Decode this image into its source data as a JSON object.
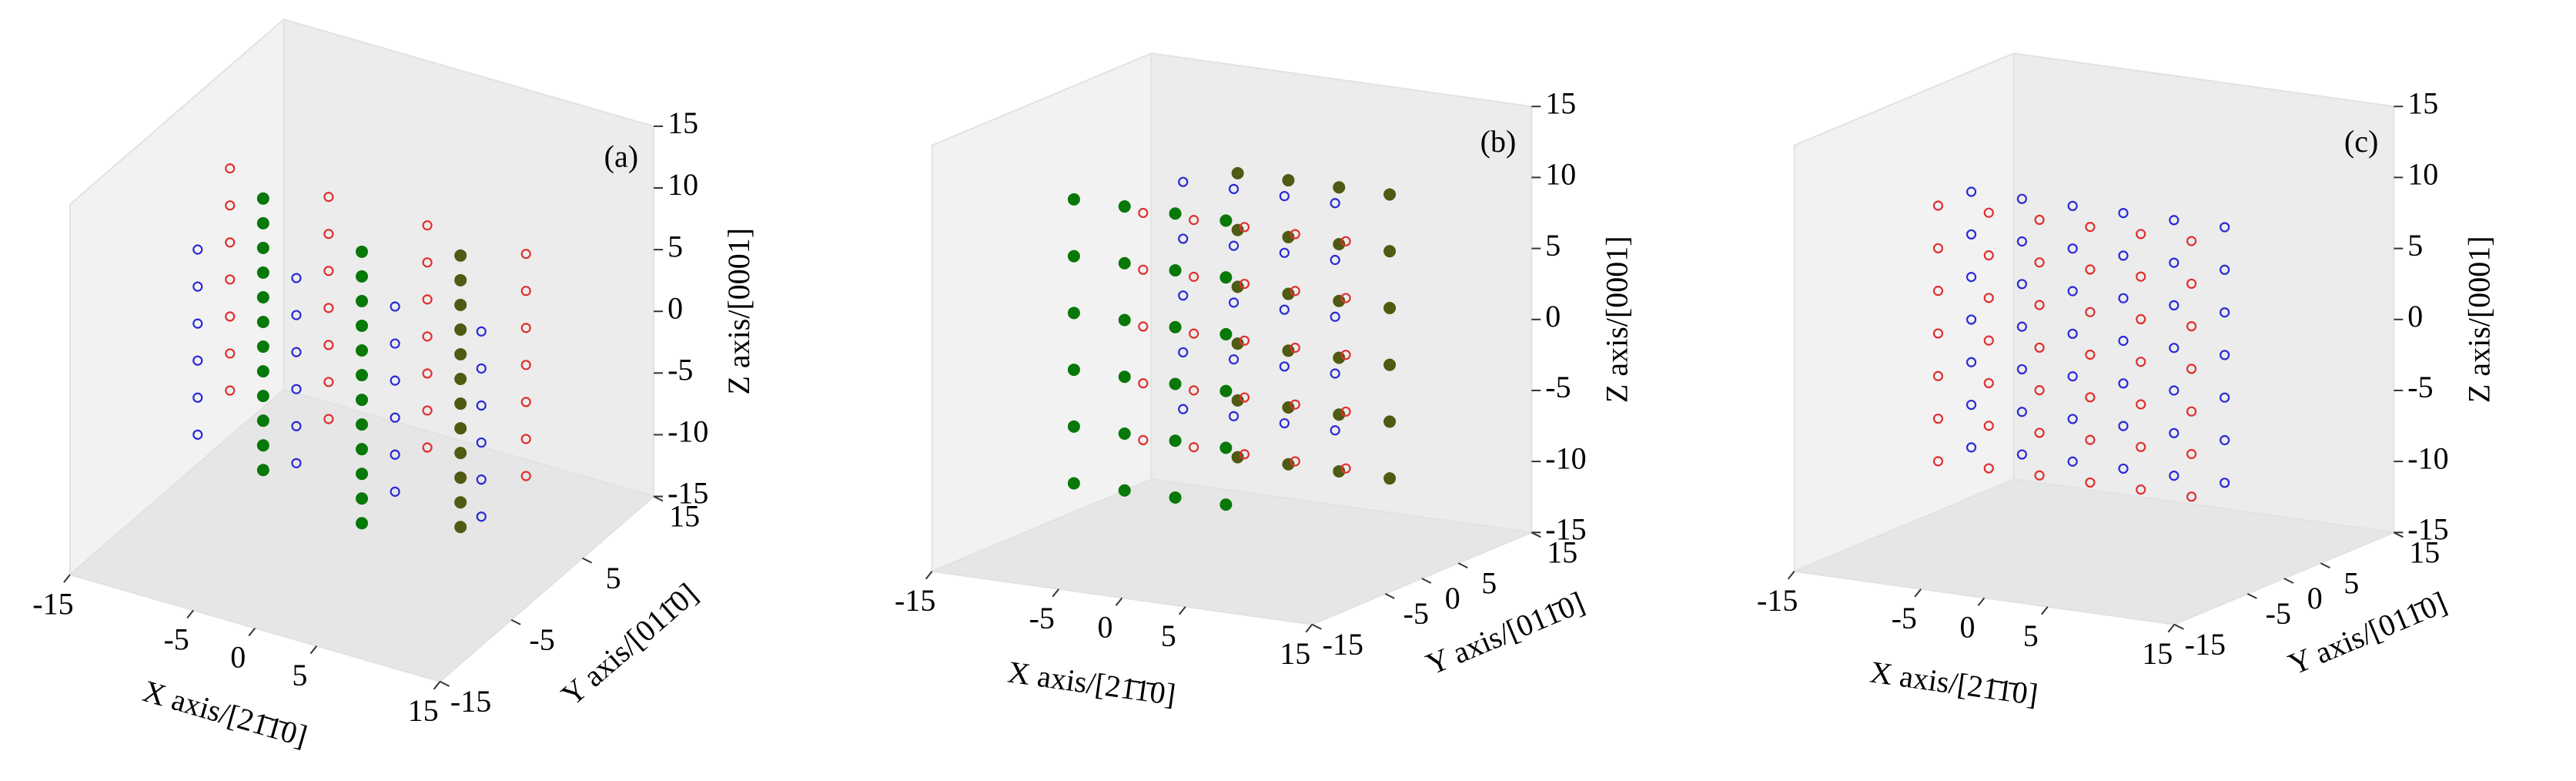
{
  "chart_data": [
    {
      "type": "scatter3d",
      "panel_label": "(a)",
      "xlabel": "X axis/[21̄1̄0]",
      "ylabel": "Y axis/[011̄0]",
      "zlabel": "Z axis/[0001]",
      "xlim": [
        -15,
        15
      ],
      "ylim": [
        -15,
        15
      ],
      "zlim": [
        -15,
        15
      ],
      "xticks": [
        -15,
        -5,
        0,
        5,
        15
      ],
      "yticks": [
        -15,
        -5,
        5,
        15
      ],
      "zticks": [
        -15,
        -10,
        -5,
        0,
        5,
        10,
        15
      ],
      "series": [
        {
          "color": "#087808",
          "marker": "filled",
          "x": [
            -8,
            -8,
            -8,
            -8,
            -8,
            -8,
            -8,
            -8,
            -8,
            -8,
            -8,
            -8,
            0,
            0,
            0,
            0,
            0,
            0,
            0,
            0,
            0,
            0,
            0,
            0
          ],
          "y": [
            0,
            0,
            0,
            0,
            0,
            0,
            0,
            0,
            0,
            0,
            0,
            0,
            0,
            0,
            0,
            0,
            0,
            0,
            0,
            0,
            0,
            0,
            0,
            0
          ],
          "z": [
            -12,
            -10,
            -8,
            -6,
            -4,
            -2,
            0,
            2,
            4,
            6,
            8,
            10,
            -14,
            -12,
            -10,
            -8,
            -6,
            -4,
            -2,
            0,
            2,
            4,
            6,
            8
          ]
        },
        {
          "color": "#4f5a12",
          "marker": "filled",
          "x": [
            8,
            8,
            8,
            8,
            8,
            8,
            8,
            8,
            8,
            8,
            8,
            8
          ],
          "y": [
            0,
            0,
            0,
            0,
            0,
            0,
            0,
            0,
            0,
            0,
            0,
            0
          ],
          "z": [
            -12,
            -10,
            -8,
            -6,
            -4,
            -2,
            0,
            2,
            4,
            6,
            8,
            10
          ]
        },
        {
          "color": "#2a2ad6",
          "marker": "open",
          "x": [
            -11,
            -11,
            -11,
            -11,
            -11,
            -11,
            -3,
            -3,
            -3,
            -3,
            -3,
            -3,
            5,
            5,
            5,
            5,
            5,
            5,
            12,
            12,
            12,
            12,
            12,
            12
          ],
          "y": [
            -4,
            -4,
            -4,
            -4,
            -4,
            -4,
            -4,
            -4,
            -4,
            -4,
            -4,
            -4,
            -4,
            -4,
            -4,
            -4,
            -4,
            -4,
            -4,
            -4,
            -4,
            -4,
            -4,
            -4
          ],
          "z": [
            -8,
            -5,
            -2,
            1,
            4,
            7,
            -8,
            -5,
            -2,
            1,
            4,
            7,
            -8,
            -5,
            -2,
            1,
            4,
            7,
            -8,
            -5,
            -2,
            1,
            4,
            7
          ]
        },
        {
          "color": "#e03030",
          "marker": "open",
          "x": [
            -13,
            -13,
            -13,
            -13,
            -13,
            -13,
            -13,
            -5,
            -5,
            -5,
            -5,
            -5,
            -5,
            -5,
            3,
            3,
            3,
            3,
            3,
            3,
            3,
            11,
            11,
            11,
            11,
            11,
            11,
            11
          ],
          "y": [
            4,
            4,
            4,
            4,
            4,
            4,
            4,
            4,
            4,
            4,
            4,
            4,
            4,
            4,
            4,
            4,
            4,
            4,
            4,
            4,
            4,
            4,
            4,
            4,
            4,
            4,
            4,
            4
          ],
          "z": [
            -9,
            -6,
            -3,
            0,
            3,
            6,
            9,
            -9,
            -6,
            -3,
            0,
            3,
            6,
            9,
            -9,
            -6,
            -3,
            0,
            3,
            6,
            9,
            -9,
            -6,
            -3,
            0,
            3,
            6,
            9
          ]
        }
      ]
    },
    {
      "type": "scatter3d",
      "panel_label": "(b)",
      "xlabel": "X axis/[21̄1̄0]",
      "ylabel": "Y axis/[011̄0]",
      "zlabel": "Z axis/[0001]",
      "xlim": [
        -15,
        15
      ],
      "ylim": [
        -15,
        15
      ],
      "zlim": [
        -15,
        15
      ],
      "xticks": [
        -15,
        -5,
        0,
        5,
        15
      ],
      "yticks": [
        -15,
        -5,
        0,
        5,
        15
      ],
      "zticks": [
        -15,
        -10,
        -5,
        0,
        5,
        10,
        15
      ],
      "series": [
        {
          "color": "#087808",
          "marker": "filled",
          "x": [
            -9,
            -9,
            -9,
            -9,
            -9,
            -9,
            -5,
            -5,
            -5,
            -5,
            -5,
            -5,
            -1,
            -1,
            -1,
            -1,
            -1,
            -1,
            3,
            3,
            3,
            3,
            3,
            3
          ],
          "y": [
            -6,
            -6,
            -6,
            -6,
            -6,
            -6,
            -6,
            -6,
            -6,
            -6,
            -6,
            -6,
            -6,
            -6,
            -6,
            -6,
            -6,
            -6,
            -6,
            -6,
            -6,
            -6,
            -6,
            -6
          ],
          "z": [
            -10,
            -6,
            -2,
            2,
            6,
            10,
            -10,
            -6,
            -2,
            2,
            6,
            10,
            -10,
            -6,
            -2,
            2,
            6,
            10,
            -10,
            -6,
            -2,
            2,
            6,
            10
          ]
        },
        {
          "color": "#4f5a12",
          "marker": "filled",
          "x": [
            -3,
            -3,
            -3,
            -3,
            -3,
            -3,
            1,
            1,
            1,
            1,
            1,
            1,
            5,
            5,
            5,
            5,
            5,
            5,
            9,
            9,
            9,
            9,
            9,
            9
          ],
          "y": [
            6,
            6,
            6,
            6,
            6,
            6,
            6,
            6,
            6,
            6,
            6,
            6,
            6,
            6,
            6,
            6,
            6,
            6,
            6,
            6,
            6,
            6,
            6,
            6
          ],
          "z": [
            -10,
            -6,
            -2,
            2,
            6,
            10,
            -10,
            -6,
            -2,
            2,
            6,
            10,
            -10,
            -6,
            -2,
            2,
            6,
            10,
            -10,
            -6,
            -2,
            2,
            6,
            10
          ]
        },
        {
          "color": "#e03030",
          "marker": "open",
          "x": [
            -7,
            -7,
            -7,
            -7,
            -7,
            -3,
            -3,
            -3,
            -3,
            -3,
            1,
            1,
            1,
            1,
            1,
            5,
            5,
            5,
            5,
            5,
            9,
            9,
            9,
            9,
            9
          ],
          "y": [
            0,
            0,
            0,
            0,
            0,
            0,
            0,
            0,
            0,
            0,
            0,
            0,
            0,
            0,
            0,
            0,
            0,
            0,
            0,
            0,
            0,
            0,
            0,
            0,
            0
          ],
          "z": [
            -8,
            -4,
            0,
            4,
            8,
            -8,
            -4,
            0,
            4,
            8,
            -8,
            -4,
            0,
            4,
            8,
            -8,
            -4,
            0,
            4,
            8,
            -8,
            -4,
            0,
            4,
            8
          ]
        },
        {
          "color": "#2a2ad6",
          "marker": "open",
          "x": [
            -5,
            -5,
            -5,
            -5,
            -5,
            -1,
            -1,
            -1,
            -1,
            -1,
            3,
            3,
            3,
            3,
            3,
            7,
            7,
            7,
            7,
            7
          ],
          "y": [
            2,
            2,
            2,
            2,
            2,
            2,
            2,
            2,
            2,
            2,
            2,
            2,
            2,
            2,
            2,
            2,
            2,
            2,
            2,
            2
          ],
          "z": [
            -6,
            -2,
            2,
            6,
            10,
            -6,
            -2,
            2,
            6,
            10,
            -6,
            -2,
            2,
            6,
            10,
            -6,
            -2,
            2,
            6,
            10
          ]
        }
      ]
    },
    {
      "type": "scatter3d",
      "panel_label": "(c)",
      "xlabel": "X axis/[21̄1̄0]",
      "ylabel": "Y axis/[011̄0]",
      "zlabel": "Z axis/[0001]",
      "xlim": [
        -15,
        15
      ],
      "ylim": [
        -15,
        15
      ],
      "zlim": [
        -15,
        15
      ],
      "xticks": [
        -15,
        -5,
        0,
        5,
        15
      ],
      "yticks": [
        -15,
        -5,
        0,
        5,
        15
      ],
      "zticks": [
        -15,
        -10,
        -5,
        0,
        5,
        10,
        15
      ],
      "series": [
        {
          "color": "#e03030",
          "marker": "open",
          "x": [
            -10,
            -10,
            -10,
            -10,
            -10,
            -10,
            -10,
            -6,
            -6,
            -6,
            -6,
            -6,
            -6,
            -6,
            -2,
            -2,
            -2,
            -2,
            -2,
            -2,
            -2,
            2,
            2,
            2,
            2,
            2,
            2,
            2,
            6,
            6,
            6,
            6,
            6,
            6,
            6,
            10,
            10,
            10,
            10,
            10,
            10,
            10
          ],
          "y": [
            -4,
            -4,
            -4,
            -4,
            -4,
            -4,
            -4,
            -4,
            -4,
            -4,
            -4,
            -4,
            -4,
            -4,
            -4,
            -4,
            -4,
            -4,
            -4,
            -4,
            -4,
            -4,
            -4,
            -4,
            -4,
            -4,
            -4,
            -4,
            -4,
            -4,
            -4,
            -4,
            -4,
            -4,
            -4,
            -4,
            -4,
            -4,
            -4,
            -4,
            -4,
            -4
          ],
          "z": [
            -9,
            -6,
            -3,
            0,
            3,
            6,
            9,
            -9,
            -6,
            -3,
            0,
            3,
            6,
            9,
            -9,
            -6,
            -3,
            0,
            3,
            6,
            9,
            -9,
            -6,
            -3,
            0,
            3,
            6,
            9,
            -9,
            -6,
            -3,
            0,
            3,
            6,
            9,
            -9,
            -6,
            -3,
            0,
            3,
            6,
            9
          ]
        },
        {
          "color": "#2a2ad6",
          "marker": "open",
          "x": [
            -12,
            -12,
            -12,
            -12,
            -12,
            -12,
            -12,
            -8,
            -8,
            -8,
            -8,
            -8,
            -8,
            -8,
            -4,
            -4,
            -4,
            -4,
            -4,
            -4,
            -4,
            0,
            0,
            0,
            0,
            0,
            0,
            0,
            4,
            4,
            4,
            4,
            4,
            4,
            4,
            8,
            8,
            8,
            8,
            8,
            8,
            8
          ],
          "y": [
            4,
            4,
            4,
            4,
            4,
            4,
            4,
            4,
            4,
            4,
            4,
            4,
            4,
            4,
            4,
            4,
            4,
            4,
            4,
            4,
            4,
            4,
            4,
            4,
            4,
            4,
            4,
            4,
            4,
            4,
            4,
            4,
            4,
            4,
            4,
            4,
            4,
            4,
            4,
            4,
            4,
            4
          ],
          "z": [
            -10,
            -7,
            -4,
            -1,
            2,
            5,
            8,
            -10,
            -7,
            -4,
            -1,
            2,
            5,
            8,
            -10,
            -7,
            -4,
            -1,
            2,
            5,
            8,
            -10,
            -7,
            -4,
            -1,
            2,
            5,
            8,
            -10,
            -7,
            -4,
            -1,
            2,
            5,
            8,
            -10,
            -7,
            -4,
            -1,
            2,
            5,
            8
          ]
        }
      ]
    }
  ]
}
